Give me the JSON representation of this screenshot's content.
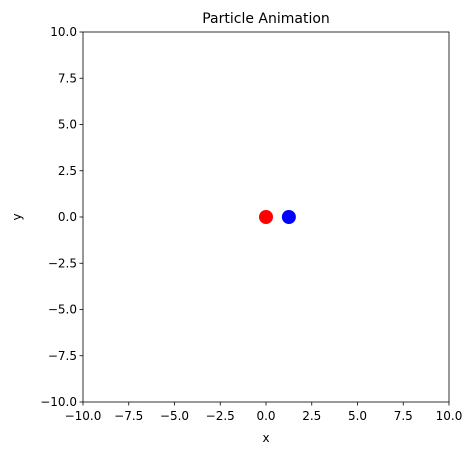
{
  "chart_data": {
    "type": "scatter",
    "title": "Particle Animation",
    "xlabel": "x",
    "ylabel": "y",
    "xlim": [
      -10.0,
      10.0
    ],
    "ylim": [
      -10.0,
      10.0
    ],
    "xticks": [
      -10.0,
      -7.5,
      -5.0,
      -2.5,
      0.0,
      2.5,
      5.0,
      7.5,
      10.0
    ],
    "yticks": [
      -10.0,
      -7.5,
      -5.0,
      -2.5,
      0.0,
      2.5,
      5.0,
      7.5,
      10.0
    ],
    "xtick_labels": [
      "−10.0",
      "−7.5",
      "−5.0",
      "−2.5",
      "0.0",
      "2.5",
      "5.0",
      "7.5",
      "10.0"
    ],
    "ytick_labels": [
      "−10.0",
      "−7.5",
      "−5.0",
      "−2.5",
      "0.0",
      "2.5",
      "5.0",
      "7.5",
      "10.0"
    ],
    "grid": false,
    "points": [
      {
        "x": 0.0,
        "y": 0.0,
        "color": "#ff0000"
      },
      {
        "x": 1.25,
        "y": 0.0,
        "color": "#0000ff"
      }
    ]
  }
}
